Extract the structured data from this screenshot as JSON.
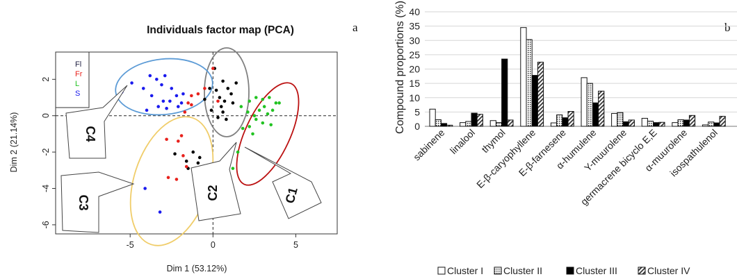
{
  "chart_data": [
    {
      "type": "scatter",
      "panel_label": "a",
      "title": "Individuals factor map (PCA)",
      "xlabel": "Dim 1 (53.12%)",
      "ylabel": "Dim 2 (21.14%)",
      "xlim": [
        -9.5,
        7.5
      ],
      "ylim": [
        -6.5,
        3.5
      ],
      "xticks": [
        "-5",
        "0",
        "5"
      ],
      "xtick_values": [
        -5,
        0,
        5
      ],
      "yticks": [
        "-6",
        "-4",
        "-2",
        "0",
        "2"
      ],
      "ytick_values": [
        -6,
        -4,
        -2,
        0,
        2
      ],
      "legend": [
        {
          "label": "Fl",
          "color": "#222244"
        },
        {
          "label": "Fr",
          "color": "#e8211c"
        },
        {
          "label": "L",
          "color": "#22c322"
        },
        {
          "label": "S",
          "color": "#1a1aee"
        }
      ],
      "series": [
        {
          "name": "Fl",
          "color": "#000000",
          "points": [
            [
              0.1,
              2.6
            ],
            [
              -0.2,
              1.5
            ],
            [
              -0.5,
              0.9
            ],
            [
              0.2,
              1.4
            ],
            [
              0.6,
              1.9
            ],
            [
              0.9,
              1.5
            ],
            [
              1.1,
              1.2
            ],
            [
              0.4,
              1.0
            ],
            [
              0.7,
              0.8
            ],
            [
              -0.1,
              0.3
            ],
            [
              0.5,
              0.5
            ],
            [
              1.2,
              0.7
            ],
            [
              0.3,
              -0.1
            ],
            [
              0.8,
              -0.2
            ],
            [
              0.6,
              0.2
            ],
            [
              1.4,
              1.8
            ],
            [
              -0.8,
              -2.3
            ],
            [
              -0.9,
              -2.6
            ],
            [
              -1.6,
              -2.5
            ],
            [
              -1.5,
              -2.9
            ],
            [
              -2.3,
              -2.1
            ],
            [
              -1.2,
              -2.0
            ],
            [
              -1.0,
              -3.0
            ]
          ]
        },
        {
          "name": "Fr",
          "color": "#e8211c",
          "points": [
            [
              0.0,
              2.6
            ],
            [
              -1.3,
              1.1
            ],
            [
              -1.5,
              0.7
            ],
            [
              -0.9,
              1.2
            ],
            [
              -1.7,
              0.2
            ],
            [
              -1.3,
              0.6
            ],
            [
              -0.5,
              1.5
            ],
            [
              0.3,
              0.8
            ],
            [
              -2.8,
              -1.3
            ],
            [
              -2.1,
              -1.4
            ],
            [
              -1.8,
              -2.2
            ],
            [
              -1.6,
              -2.8
            ],
            [
              -2.7,
              -3.4
            ],
            [
              -2.2,
              -3.5
            ],
            [
              -1.9,
              -1.1
            ]
          ]
        },
        {
          "name": "L",
          "color": "#22c322",
          "points": [
            [
              1.7,
              0.5
            ],
            [
              2.2,
              0.8
            ],
            [
              2.6,
              1.0
            ],
            [
              3.0,
              0.9
            ],
            [
              3.4,
              1.0
            ],
            [
              3.8,
              0.7
            ],
            [
              2.1,
              0.2
            ],
            [
              2.5,
              0.0
            ],
            [
              2.8,
              0.3
            ],
            [
              3.1,
              0.5
            ],
            [
              3.3,
              0.1
            ],
            [
              2.6,
              -0.2
            ],
            [
              3.0,
              -0.4
            ],
            [
              3.5,
              -0.5
            ],
            [
              2.2,
              -0.6
            ],
            [
              1.8,
              -0.7
            ],
            [
              2.4,
              -1.0
            ],
            [
              1.5,
              -2.0
            ],
            [
              1.2,
              -2.9
            ],
            [
              4.0,
              0.7
            ],
            [
              3.6,
              0.3
            ]
          ]
        },
        {
          "name": "S",
          "color": "#1a1aee",
          "points": [
            [
              -5.5,
              1.3
            ],
            [
              -4.9,
              1.8
            ],
            [
              -4.2,
              1.5
            ],
            [
              -3.8,
              2.2
            ],
            [
              -3.4,
              2.0
            ],
            [
              -3.1,
              1.7
            ],
            [
              -2.9,
              2.2
            ],
            [
              -2.5,
              1.5
            ],
            [
              -3.7,
              1.1
            ],
            [
              -3.0,
              0.8
            ],
            [
              -2.6,
              0.8
            ],
            [
              -2.2,
              1.1
            ],
            [
              -1.8,
              1.2
            ],
            [
              -3.3,
              0.5
            ],
            [
              -2.8,
              0.4
            ],
            [
              -2.1,
              0.5
            ],
            [
              -4.0,
              0.3
            ],
            [
              -1.9,
              0.7
            ],
            [
              -4.1,
              -4.0
            ],
            [
              -3.2,
              -5.3
            ]
          ]
        }
      ],
      "ellipses": [
        {
          "label": "C1",
          "color": "#bb1111"
        },
        {
          "label": "C2",
          "color": "#808080"
        },
        {
          "label": "C3",
          "color": "#f0cd6a"
        },
        {
          "label": "C4",
          "color": "#5c9bd6"
        }
      ]
    },
    {
      "type": "bar",
      "panel_label": "b",
      "ylabel": "Compound proportions (%)",
      "ylim": [
        0,
        40
      ],
      "yticks": [
        "0",
        "5",
        "10",
        "15",
        "20",
        "25",
        "30",
        "35",
        "40"
      ],
      "categories": [
        "sabinene",
        "linalool",
        "thymol",
        "E-β-caryophyllene",
        "E-β-farnesene",
        "α-humulene",
        "Y-muurolene",
        "germacrene bicyclo E,E",
        "α-muurolene",
        "isospathulenol"
      ],
      "series": [
        {
          "name": "Cluster I",
          "pattern": "white",
          "values": [
            6.0,
            1.3,
            2.0,
            34.5,
            1.2,
            17.0,
            4.5,
            2.8,
            1.3,
            0.5
          ]
        },
        {
          "name": "Cluster II",
          "pattern": "dotted",
          "values": [
            2.3,
            1.7,
            1.3,
            30.3,
            4.0,
            15.0,
            4.8,
            1.8,
            2.3,
            1.5
          ]
        },
        {
          "name": "Cluster III",
          "pattern": "black",
          "values": [
            1.0,
            4.6,
            23.5,
            17.8,
            3.0,
            8.2,
            1.6,
            1.3,
            2.2,
            1.2
          ]
        },
        {
          "name": "Cluster IV",
          "pattern": "hatched",
          "values": [
            0.4,
            4.2,
            2.2,
            22.4,
            5.2,
            12.3,
            2.2,
            1.4,
            3.8,
            3.5
          ]
        }
      ]
    }
  ]
}
